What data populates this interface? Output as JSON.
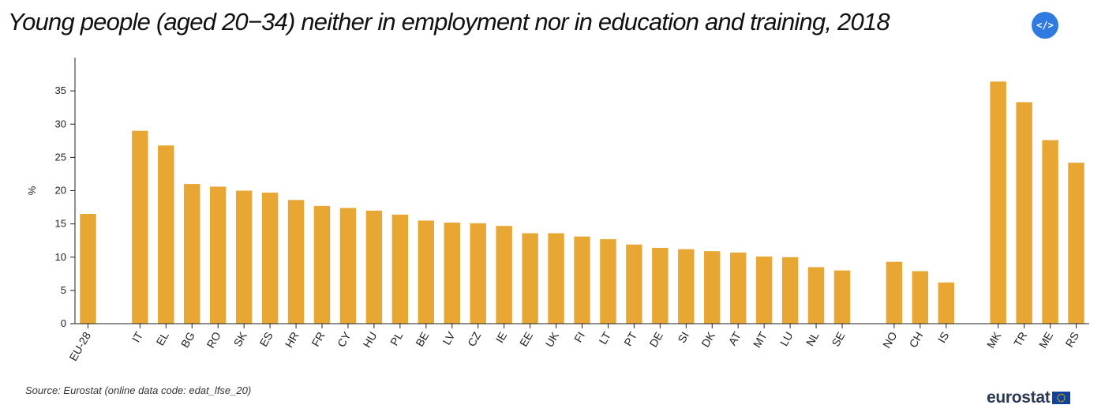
{
  "title": "Young people (aged 20−34) neither in employment nor in education and training, 2018",
  "embed_button": {
    "label": "</>"
  },
  "source": "Source: Eurostat (online data code: edat_lfse_20)",
  "logo": {
    "text": "eurostat"
  },
  "colors": {
    "bar": "#e8a733",
    "axis": "#222222",
    "embed_button": "#2f7be0",
    "logo_text": "#2a3a55",
    "flag_blue": "#10449a",
    "flag_stars": "#ffd617"
  },
  "chart_data": {
    "type": "bar",
    "categories": [
      "EU-28",
      "IT",
      "EL",
      "BG",
      "RO",
      "SK",
      "ES",
      "HR",
      "FR",
      "CY",
      "HU",
      "PL",
      "BE",
      "LV",
      "CZ",
      "IE",
      "EE",
      "UK",
      "FI",
      "LT",
      "PT",
      "DE",
      "SI",
      "DK",
      "AT",
      "MT",
      "LU",
      "NL",
      "SE",
      "NO",
      "CH",
      "IS",
      "MK",
      "TR",
      "ME",
      "RS"
    ],
    "groups": [
      [
        "EU-28"
      ],
      [
        "IT",
        "EL",
        "BG",
        "RO",
        "SK",
        "ES",
        "HR",
        "FR",
        "CY",
        "HU",
        "PL",
        "BE",
        "LV",
        "CZ",
        "IE",
        "EE",
        "UK",
        "FI",
        "LT",
        "PT",
        "DE",
        "SI",
        "DK",
        "AT",
        "MT",
        "LU",
        "NL",
        "SE"
      ],
      [
        "NO",
        "CH",
        "IS"
      ],
      [
        "MK",
        "TR",
        "ME",
        "RS"
      ]
    ],
    "values": [
      16.5,
      29.0,
      26.8,
      21.0,
      20.6,
      20.0,
      19.7,
      18.6,
      17.7,
      17.4,
      17.0,
      16.4,
      15.5,
      15.2,
      15.1,
      14.7,
      13.6,
      13.6,
      13.1,
      12.7,
      11.9,
      11.4,
      11.2,
      10.9,
      10.7,
      10.1,
      10.0,
      8.5,
      8.0,
      9.3,
      7.9,
      6.2,
      36.4,
      33.3,
      27.6,
      24.2
    ],
    "ylabel": "%",
    "xlabel": "",
    "ylim": [
      0,
      40
    ],
    "yticks": [
      0,
      5,
      10,
      15,
      20,
      25,
      30,
      35
    ],
    "grid": false,
    "legend": "none"
  }
}
